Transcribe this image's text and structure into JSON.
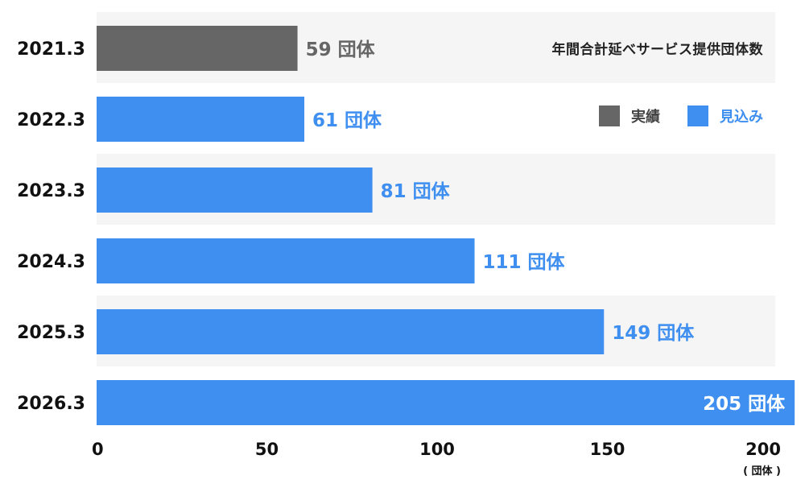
{
  "chart_data": {
    "type": "bar",
    "orientation": "horizontal",
    "title": "年間合計延べサービス提供団体数",
    "categories": [
      "2021.3",
      "2022.3",
      "2023.3",
      "2024.3",
      "2025.3",
      "2026.3"
    ],
    "values": [
      59,
      61,
      81,
      111,
      149,
      205
    ],
    "value_labels": [
      "59 団体",
      "61 団体",
      "81 団体",
      "111 団体",
      "149 団体",
      "205 団体"
    ],
    "bar_status": [
      "actual",
      "forecast",
      "forecast",
      "forecast",
      "forecast",
      "forecast"
    ],
    "legend": [
      {
        "key": "actual",
        "label": "実績",
        "color": "#666666"
      },
      {
        "key": "forecast",
        "label": "見込み",
        "color": "#3f8ff0"
      }
    ],
    "x_ticks": [
      "0",
      "50",
      "100",
      "150",
      "200"
    ],
    "x_tick_values": [
      0,
      50,
      100,
      150,
      200
    ],
    "xlim": [
      0,
      200
    ],
    "unit": "( 団体 )",
    "band_colors": [
      "#f5f5f5",
      "#ffffff"
    ],
    "grid": false,
    "legend_position": "top-right"
  }
}
